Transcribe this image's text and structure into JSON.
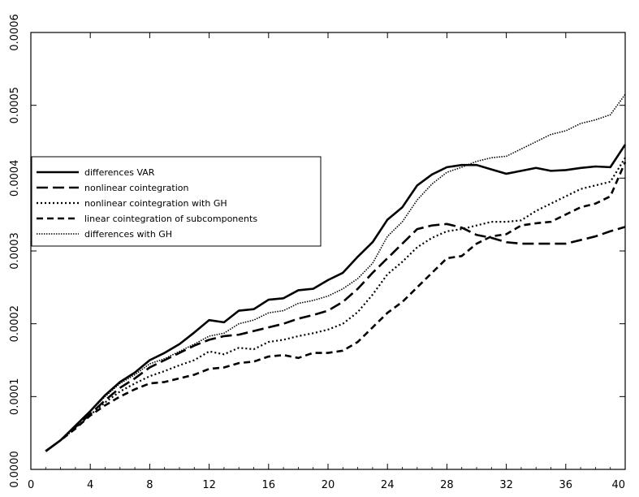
{
  "chart_data": {
    "type": "line",
    "title": "",
    "xlabel": "",
    "ylabel": "",
    "xlim": [
      0,
      40
    ],
    "ylim": [
      0,
      0.0006
    ],
    "grid": false,
    "legend_position": "middle-left",
    "x_ticks": [
      "0",
      "4",
      "8",
      "12",
      "16",
      "20",
      "24",
      "28",
      "32",
      "36",
      "40"
    ],
    "y_ticks": [
      "0.0000",
      "0.0001",
      "0.0002",
      "0.0003",
      "0.0004",
      "0.0005",
      "0.0006"
    ],
    "x": [
      1,
      2,
      3,
      4,
      5,
      6,
      7,
      8,
      9,
      10,
      11,
      12,
      13,
      14,
      15,
      16,
      17,
      18,
      19,
      20,
      21,
      22,
      23,
      24,
      25,
      26,
      27,
      28,
      29,
      30,
      31,
      32,
      33,
      34,
      35,
      36,
      37,
      38,
      39,
      40
    ],
    "series": [
      {
        "name": "differences VAR",
        "style": "solid",
        "values": [
          2.5e-05,
          4e-05,
          6e-05,
          8e-05,
          0.000102,
          0.00012,
          0.000133,
          0.00015,
          0.00016,
          0.000172,
          0.000188,
          0.000205,
          0.000202,
          0.000218,
          0.00022,
          0.000233,
          0.000235,
          0.000246,
          0.000248,
          0.00026,
          0.00027,
          0.000292,
          0.000312,
          0.000343,
          0.00036,
          0.00039,
          0.000405,
          0.000415,
          0.000418,
          0.000418,
          0.000412,
          0.000406,
          0.00041,
          0.000414,
          0.00041,
          0.000411,
          0.000414,
          0.000416,
          0.000415,
          0.000446
        ]
      },
      {
        "name": "nonlinear cointegration",
        "style": "longdash",
        "values": [
          2.5e-05,
          4e-05,
          5.8e-05,
          7.6e-05,
          9.5e-05,
          0.000112,
          0.000125,
          0.00014,
          0.00015,
          0.00016,
          0.00017,
          0.000178,
          0.000183,
          0.000185,
          0.00019,
          0.000195,
          0.0002,
          0.000207,
          0.000212,
          0.000218,
          0.00023,
          0.000248,
          0.00027,
          0.00029,
          0.00031,
          0.00033,
          0.000335,
          0.000337,
          0.000332,
          0.000322,
          0.000318,
          0.000312,
          0.00031,
          0.00031,
          0.00031,
          0.00031,
          0.000315,
          0.00032,
          0.000327,
          0.000333
        ]
      },
      {
        "name": "nonlinear cointegration with GH",
        "style": "dotted",
        "values": [
          2.5e-05,
          4e-05,
          5.7e-05,
          7.5e-05,
          9.2e-05,
          0.000107,
          0.000118,
          0.000128,
          0.000135,
          0.000143,
          0.00015,
          0.000162,
          0.000158,
          0.000167,
          0.000165,
          0.000175,
          0.000178,
          0.000183,
          0.000187,
          0.000192,
          0.0002,
          0.000216,
          0.00024,
          0.000268,
          0.000285,
          0.000305,
          0.000318,
          0.000327,
          0.00033,
          0.000335,
          0.00034,
          0.00034,
          0.000342,
          0.000355,
          0.000365,
          0.000375,
          0.000385,
          0.00039,
          0.000395,
          0.000428
        ]
      },
      {
        "name": "linear cointegration of subcomponents",
        "style": "dashed",
        "values": [
          2.5e-05,
          4e-05,
          5.6e-05,
          7.4e-05,
          8.8e-05,
          0.0001,
          0.00011,
          0.000118,
          0.00012,
          0.000125,
          0.00013,
          0.000138,
          0.00014,
          0.000146,
          0.000148,
          0.000155,
          0.000157,
          0.000153,
          0.00016,
          0.00016,
          0.000163,
          0.000175,
          0.000195,
          0.000215,
          0.00023,
          0.00025,
          0.00027,
          0.00029,
          0.000293,
          0.00031,
          0.00032,
          0.000323,
          0.000335,
          0.000338,
          0.00034,
          0.00035,
          0.00036,
          0.000365,
          0.000375,
          0.000422
        ]
      },
      {
        "name": "differences with GH",
        "style": "densedot",
        "values": [
          2.5e-05,
          4e-05,
          6e-05,
          8e-05,
          0.0001,
          0.000118,
          0.00013,
          0.000145,
          0.000152,
          0.000162,
          0.000172,
          0.000183,
          0.000187,
          0.0002,
          0.000205,
          0.000215,
          0.000218,
          0.000228,
          0.000232,
          0.000238,
          0.000248,
          0.000262,
          0.000283,
          0.00032,
          0.00034,
          0.00037,
          0.000392,
          0.000408,
          0.000415,
          0.000423,
          0.000428,
          0.00043,
          0.00044,
          0.00045,
          0.00046,
          0.000465,
          0.000475,
          0.00048,
          0.000487,
          0.000515
        ]
      }
    ]
  }
}
